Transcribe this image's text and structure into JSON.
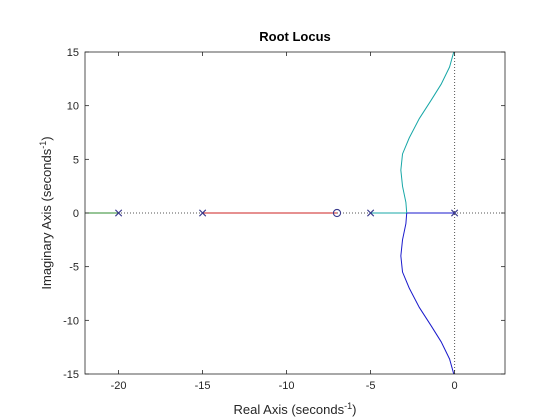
{
  "chart_data": {
    "type": "line",
    "title": "Root Locus",
    "xlabel": "Real Axis (seconds",
    "ylabel": "Imaginary Axis (seconds",
    "axis_unit_exponent": "-1",
    "axis_label_suffix": ")",
    "xlim": [
      -22,
      3
    ],
    "ylim": [
      -15,
      15
    ],
    "xticks": [
      -20,
      -15,
      -10,
      -5,
      0
    ],
    "yticks": [
      -15,
      -10,
      -5,
      0,
      5,
      10,
      15
    ],
    "grid": false,
    "reference_lines": [
      {
        "axis": "x",
        "value": 0,
        "style": "dotted"
      },
      {
        "axis": "y",
        "value": 0,
        "style": "dotted"
      }
    ],
    "poles": [
      {
        "x": -20,
        "y": 0
      },
      {
        "x": -15,
        "y": 0
      },
      {
        "x": -5,
        "y": 0
      },
      {
        "x": 0,
        "y": 0
      }
    ],
    "zeros": [
      {
        "x": -7,
        "y": 0
      }
    ],
    "series": [
      {
        "color": "#2e8b2e",
        "x": [
          -20,
          -22
        ],
        "y": [
          0,
          0
        ]
      },
      {
        "color": "#cc2222",
        "x": [
          -15,
          -7
        ],
        "y": [
          0,
          0
        ]
      },
      {
        "color": "#17a7a7",
        "x": [
          -5,
          -2.85
        ],
        "y": [
          0,
          0
        ]
      },
      {
        "color": "#1a1acc",
        "x": [
          0,
          -2.85
        ],
        "y": [
          0,
          0
        ]
      },
      {
        "color": "#17a7a7",
        "x": [
          -2.85,
          -2.9,
          -3.1,
          -3.2,
          -3.1,
          -2.7,
          -2.1,
          -1.4,
          -0.8,
          -0.3,
          -0.05
        ],
        "y": [
          0,
          1,
          2.5,
          4,
          5.5,
          7,
          8.8,
          10.5,
          12,
          13.6,
          15
        ]
      },
      {
        "color": "#1a1acc",
        "x": [
          -2.85,
          -2.9,
          -3.1,
          -3.2,
          -3.1,
          -2.7,
          -2.1,
          -1.4,
          -0.8,
          -0.3,
          -0.05
        ],
        "y": [
          0,
          -1,
          -2.5,
          -4,
          -5.5,
          -7,
          -8.8,
          -10.5,
          -12,
          -13.6,
          -15
        ]
      }
    ]
  }
}
